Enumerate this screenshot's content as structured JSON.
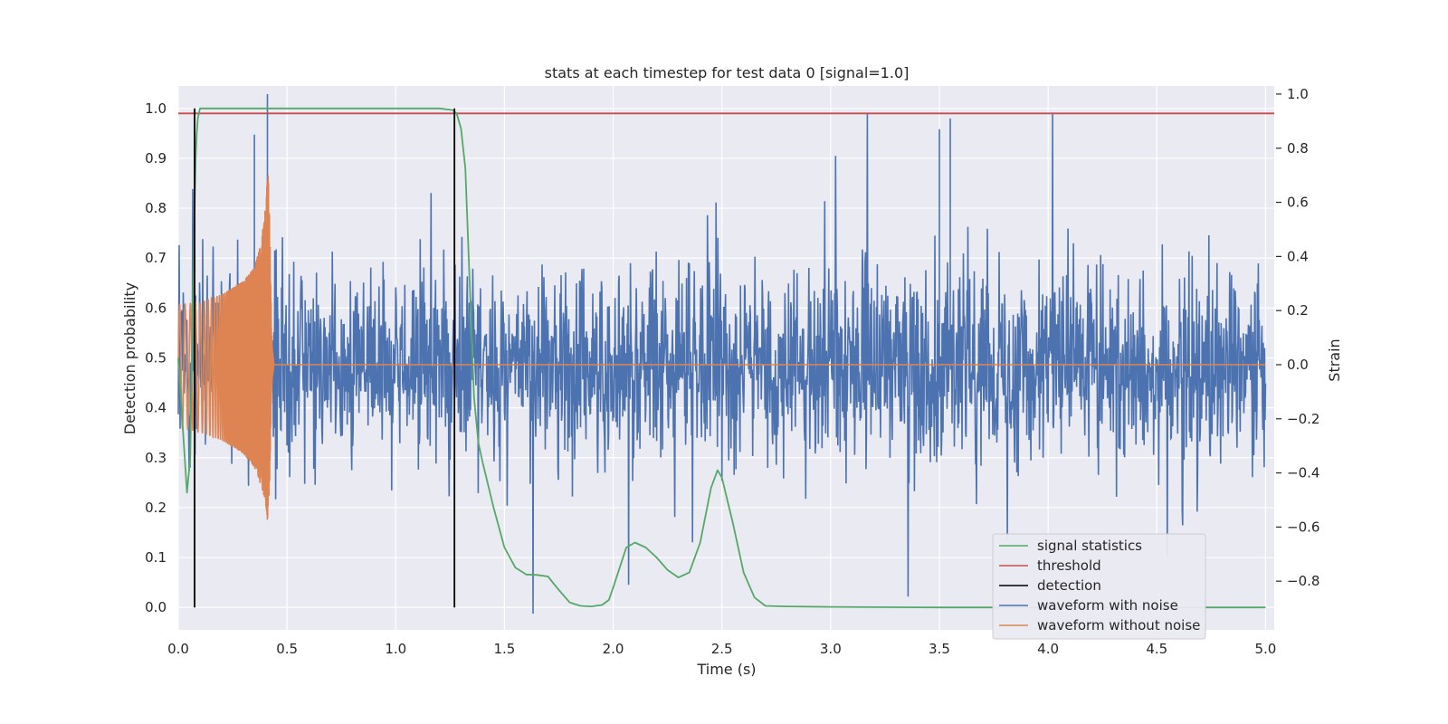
{
  "chart_data": {
    "type": "line",
    "title": "stats at each timestep for test data 0 [signal=1.0]",
    "xlabel": "Time (s)",
    "ylabel": "Detection probability",
    "y2label": "Strain",
    "xlim": [
      0.0,
      5.04
    ],
    "ylim": [
      -0.045,
      1.045
    ],
    "y2lim": [
      -0.98,
      1.03
    ],
    "grid": true,
    "legend_position": "lower right",
    "x_ticks": [
      "0.0",
      "0.5",
      "1.0",
      "1.5",
      "2.0",
      "2.5",
      "3.0",
      "3.5",
      "4.0",
      "4.5",
      "5.0"
    ],
    "y_ticks": [
      "0.0",
      "0.1",
      "0.2",
      "0.3",
      "0.4",
      "0.5",
      "0.6",
      "0.7",
      "0.8",
      "0.9",
      "1.0"
    ],
    "y2_ticks": [
      "−0.8",
      "−0.6",
      "−0.4",
      "−0.2",
      "0.0",
      "0.2",
      "0.4",
      "0.6",
      "0.8",
      "1.0"
    ],
    "series": [
      {
        "name": "signal statistics",
        "axis": "left",
        "color": "#55a868",
        "x": [
          0.0,
          0.04,
          0.055,
          0.065,
          0.075,
          0.08,
          0.085,
          0.09,
          0.095,
          0.1,
          0.12,
          0.2,
          0.5,
          1.0,
          1.2,
          1.26,
          1.28,
          1.3,
          1.32,
          1.34,
          1.36,
          1.38,
          1.4,
          1.45,
          1.5,
          1.55,
          1.6,
          1.65,
          1.7,
          1.75,
          1.8,
          1.85,
          1.9,
          1.95,
          1.98,
          2.0,
          2.03,
          2.06,
          2.1,
          2.15,
          2.2,
          2.25,
          2.3,
          2.35,
          2.4,
          2.45,
          2.48,
          2.5,
          2.55,
          2.6,
          2.65,
          2.7,
          2.8,
          3.0,
          3.5,
          4.0,
          4.5,
          5.0
        ],
        "y": [
          0.5,
          0.23,
          0.3,
          0.55,
          0.8,
          0.9,
          0.95,
          0.98,
          0.99,
          1.0,
          1.0,
          1.0,
          1.0,
          1.0,
          1.0,
          0.997,
          0.99,
          0.96,
          0.88,
          0.65,
          0.42,
          0.33,
          0.29,
          0.2,
          0.12,
          0.08,
          0.066,
          0.065,
          0.062,
          0.035,
          0.01,
          0.003,
          0.002,
          0.005,
          0.015,
          0.04,
          0.08,
          0.12,
          0.13,
          0.12,
          0.1,
          0.075,
          0.06,
          0.07,
          0.13,
          0.24,
          0.275,
          0.26,
          0.17,
          0.07,
          0.02,
          0.003,
          0.002,
          0.001,
          0.0,
          0.0,
          0.0,
          0.0
        ]
      },
      {
        "name": "threshold",
        "axis": "left",
        "color": "#c44e52",
        "value": 0.99
      },
      {
        "name": "detection",
        "axis": "left",
        "color": "#000000",
        "x": [
          0.075,
          1.27
        ],
        "y_range": [
          0.0,
          1.0
        ]
      },
      {
        "name": "waveform with noise",
        "axis": "right",
        "color": "#4c72b0",
        "x_range": [
          0.0,
          5.0
        ],
        "amplitude_range": [
          -0.92,
          1.0
        ],
        "note": "noisy strain; peaks ~ +1.0 at t≈0.41, ~0.9 at 3.5 and 3.55"
      },
      {
        "name": "waveform without noise",
        "axis": "right",
        "color": "#dd8452",
        "x": [
          0.0,
          0.1,
          0.2,
          0.3,
          0.35,
          0.38,
          0.4,
          0.41,
          0.42,
          0.43,
          0.44,
          5.0
        ],
        "envelope": [
          0.22,
          0.23,
          0.26,
          0.31,
          0.36,
          0.45,
          0.58,
          0.8,
          0.55,
          0.1,
          0.0,
          0.0
        ],
        "envelope_lower": [
          -0.23,
          -0.25,
          -0.28,
          -0.33,
          -0.38,
          -0.45,
          -0.5,
          -0.58,
          -0.45,
          -0.08,
          0.0,
          0.0
        ]
      }
    ]
  }
}
